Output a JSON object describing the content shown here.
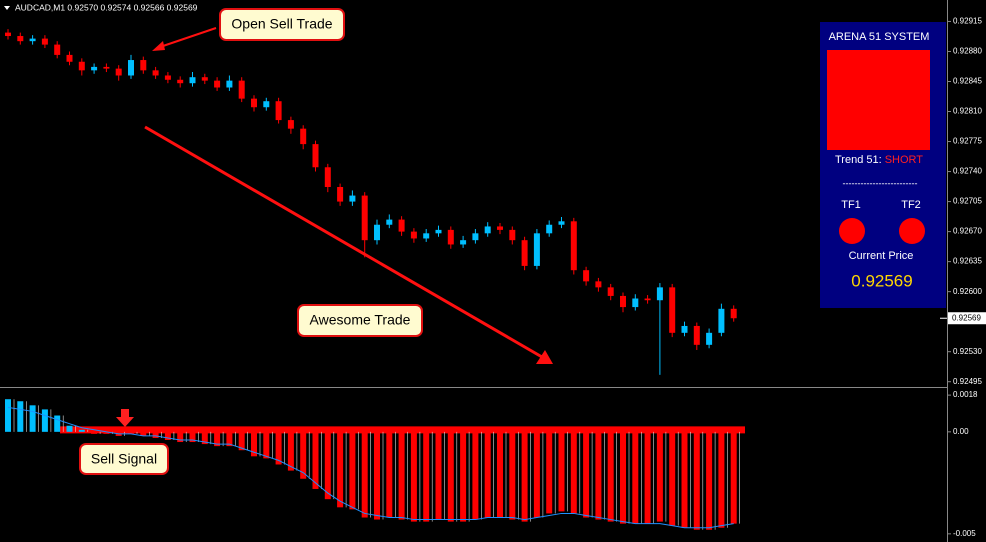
{
  "chart_data": [
    {
      "type": "candlestick",
      "title": "AUDCAD,M1  0.92570 0.92574 0.92566 0.92569",
      "up_color": "#00bfff",
      "down_color": "#ff0000",
      "open": [
        0.92902,
        0.92898,
        0.92892,
        0.92895,
        0.92888,
        0.92876,
        0.92868,
        0.92858,
        0.92862,
        0.9286,
        0.92852,
        0.9287,
        0.92858,
        0.92852,
        0.92847,
        0.92843,
        0.9285,
        0.92846,
        0.92838,
        0.92846,
        0.92825,
        0.92815,
        0.92822,
        0.928,
        0.9279,
        0.92772,
        0.92745,
        0.92722,
        0.92705,
        0.92712,
        0.9266,
        0.92678,
        0.92684,
        0.9267,
        0.92662,
        0.92668,
        0.92672,
        0.92655,
        0.9266,
        0.92668,
        0.92676,
        0.92672,
        0.9266,
        0.9263,
        0.92668,
        0.92678,
        0.92682,
        0.92625,
        0.92612,
        0.92605,
        0.92595,
        0.92582,
        0.92592,
        0.9259,
        0.92605,
        0.92552,
        0.9256,
        0.92538,
        0.92552,
        0.9258
      ],
      "high": [
        0.92906,
        0.92902,
        0.92899,
        0.92899,
        0.92892,
        0.9288,
        0.92872,
        0.92866,
        0.92866,
        0.92864,
        0.92876,
        0.92874,
        0.92862,
        0.92856,
        0.92851,
        0.92856,
        0.92854,
        0.9285,
        0.92852,
        0.9285,
        0.92829,
        0.92826,
        0.92826,
        0.92804,
        0.92794,
        0.92776,
        0.92749,
        0.92726,
        0.92718,
        0.92716,
        0.92684,
        0.9269,
        0.92688,
        0.92674,
        0.92673,
        0.92677,
        0.92676,
        0.92665,
        0.92673,
        0.92681,
        0.9268,
        0.92676,
        0.92664,
        0.92673,
        0.92683,
        0.92687,
        0.92686,
        0.92629,
        0.92616,
        0.92609,
        0.92599,
        0.92597,
        0.92596,
        0.9261,
        0.92609,
        0.92565,
        0.92564,
        0.92557,
        0.92586,
        0.92584
      ],
      "low": [
        0.92894,
        0.92888,
        0.92888,
        0.92884,
        0.92872,
        0.92864,
        0.92852,
        0.92854,
        0.92856,
        0.92846,
        0.92848,
        0.92854,
        0.92848,
        0.92843,
        0.92838,
        0.92839,
        0.92842,
        0.92834,
        0.92834,
        0.92821,
        0.9281,
        0.92811,
        0.92796,
        0.92784,
        0.92766,
        0.9274,
        0.92716,
        0.927,
        0.927,
        0.9264,
        0.92655,
        0.92674,
        0.92665,
        0.92657,
        0.92658,
        0.92664,
        0.9265,
        0.92651,
        0.92656,
        0.92664,
        0.92667,
        0.92655,
        0.92625,
        0.92626,
        0.92664,
        0.92674,
        0.9262,
        0.92607,
        0.926,
        0.9259,
        0.92576,
        0.92578,
        0.92586,
        0.92503,
        0.92547,
        0.92548,
        0.92532,
        0.92534,
        0.92548,
        0.92565
      ],
      "close": [
        0.92898,
        0.92892,
        0.92895,
        0.92888,
        0.92876,
        0.92868,
        0.92858,
        0.92862,
        0.9286,
        0.92852,
        0.9287,
        0.92858,
        0.92852,
        0.92847,
        0.92843,
        0.9285,
        0.92846,
        0.92838,
        0.92846,
        0.92825,
        0.92815,
        0.92822,
        0.928,
        0.9279,
        0.92772,
        0.92745,
        0.92722,
        0.92705,
        0.92712,
        0.9266,
        0.92678,
        0.92684,
        0.9267,
        0.92662,
        0.92668,
        0.92672,
        0.92655,
        0.9266,
        0.92668,
        0.92676,
        0.92672,
        0.9266,
        0.9263,
        0.92668,
        0.92678,
        0.92682,
        0.92625,
        0.92612,
        0.92605,
        0.92595,
        0.92582,
        0.92592,
        0.9259,
        0.92605,
        0.92552,
        0.9256,
        0.92538,
        0.92552,
        0.9258,
        0.92569
      ],
      "ylim": [
        0.9249,
        0.9294
      ],
      "yticks": [
        0.92915,
        {
          "value": 0.9288,
          "label": "0.92880"
        },
        0.92845,
        {
          "value": 0.9281,
          "label": "0.92810"
        },
        0.92775,
        {
          "value": 0.9274,
          "label": "0.92740"
        },
        0.92705,
        {
          "value": 0.9267,
          "label": "0.92670"
        },
        0.92635,
        {
          "value": 0.926,
          "label": "0.92600"
        },
        {
          "value": 0.9253,
          "label": "0.92530"
        },
        0.92495
      ],
      "last_price": {
        "value": 0.92569,
        "label": "0.92569"
      },
      "annotations": [
        "Open Sell Trade",
        "Awesome Trade"
      ]
    },
    {
      "type": "bar",
      "pos_color": "#00bfff",
      "neg_color": "#ff0000",
      "line_color": "#1e90ff",
      "values": [
        0.0016,
        0.0015,
        0.0013,
        0.0011,
        0.0008,
        0.0003,
        0.0001,
        -0.0001,
        -0.0001,
        -0.0002,
        -0.0001,
        -0.0002,
        -0.0003,
        -0.0004,
        -0.0005,
        -0.0005,
        -0.0006,
        -0.0007,
        -0.0007,
        -0.0009,
        -0.0012,
        -0.0013,
        -0.0016,
        -0.0019,
        -0.0023,
        -0.0028,
        -0.0033,
        -0.0037,
        -0.0038,
        -0.0042,
        -0.0043,
        -0.0042,
        -0.0043,
        -0.0044,
        -0.0044,
        -0.0043,
        -0.0044,
        -0.0044,
        -0.0043,
        -0.0042,
        -0.0042,
        -0.0043,
        -0.0044,
        -0.0042,
        -0.004,
        -0.0039,
        -0.004,
        -0.0042,
        -0.0043,
        -0.0044,
        -0.0045,
        -0.0045,
        -0.0045,
        -0.0044,
        -0.0046,
        -0.0047,
        -0.0048,
        -0.0048,
        -0.0047,
        -0.0045
      ],
      "line": [
        0.0012,
        0.0011,
        0.001,
        0.0008,
        0.0006,
        0.0004,
        0.0002,
        0.0001,
        0,
        -0.0001,
        -0.0001,
        -0.0002,
        -0.0002,
        -0.0003,
        -0.0004,
        -0.0004,
        -0.0005,
        -0.0006,
        -0.0006,
        -0.0008,
        -0.001,
        -0.0012,
        -0.0014,
        -0.0017,
        -0.002,
        -0.0025,
        -0.003,
        -0.0034,
        -0.0037,
        -0.004,
        -0.0041,
        -0.0042,
        -0.0042,
        -0.0043,
        -0.0043,
        -0.0043,
        -0.0043,
        -0.0043,
        -0.0043,
        -0.0042,
        -0.0042,
        -0.0042,
        -0.0043,
        -0.0042,
        -0.0041,
        -0.004,
        -0.004,
        -0.0041,
        -0.0042,
        -0.0043,
        -0.0044,
        -0.0045,
        -0.0045,
        -0.0045,
        -0.0046,
        -0.0047,
        -0.0047,
        -0.0047,
        -0.0046,
        -0.0045
      ],
      "ylim": [
        -0.0054,
        0.0021
      ],
      "yticks": [
        0.0018,
        {
          "value": 0,
          "label": "0.00"
        },
        -0.005
      ],
      "annotations": [
        "Sell Signal"
      ]
    }
  ],
  "panel": {
    "title": "ARENA 51 SYSTEM",
    "trend_label": "Trend 51:",
    "trend_value": "SHORT",
    "divider": "-------------------------",
    "tf1": "TF1",
    "tf2": "TF2",
    "price_label": "Current Price",
    "price_value": "0.92569"
  }
}
